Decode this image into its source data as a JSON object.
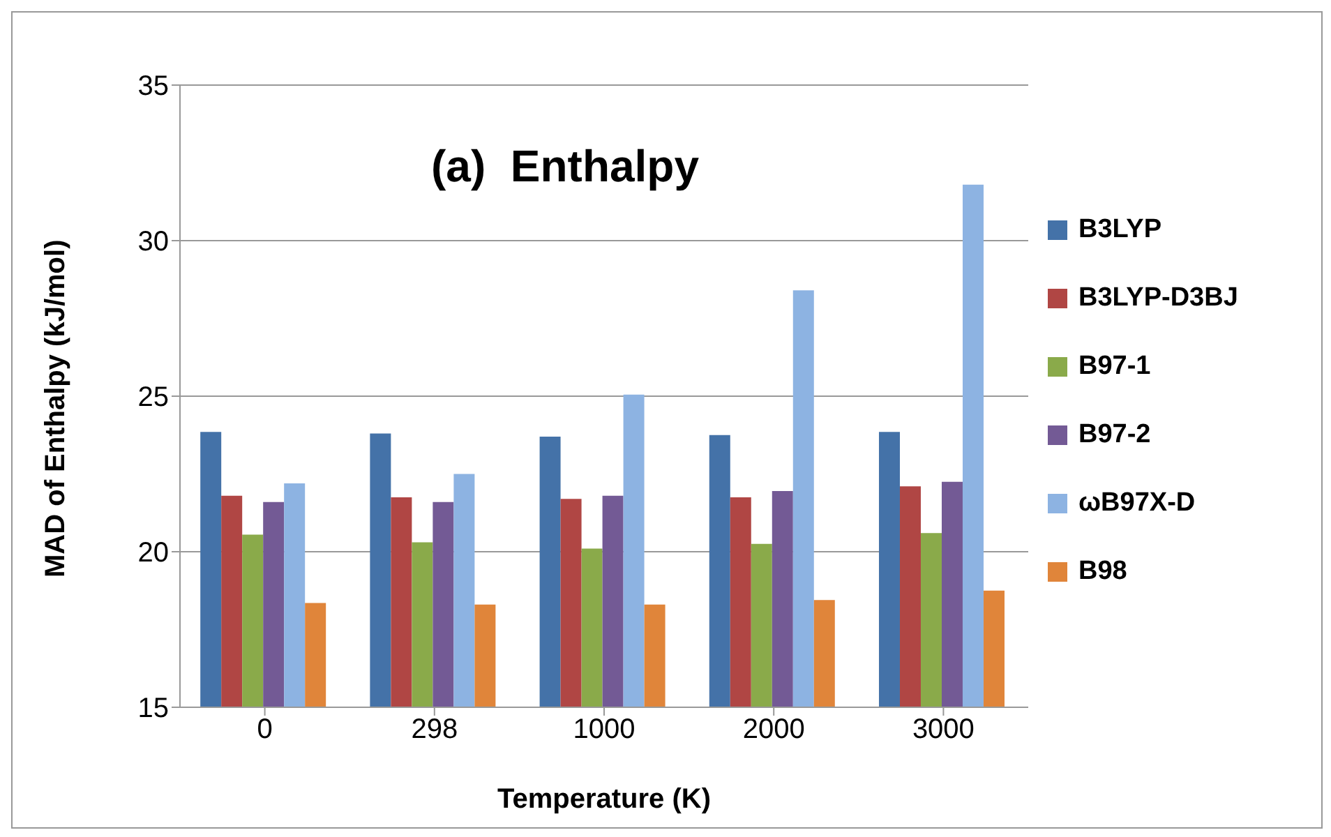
{
  "chart_data": {
    "type": "bar",
    "title": "(a)  Enthalpy",
    "xlabel": "Temperature (K)",
    "ylabel": "MAD of Enthalpy (kJ/mol)",
    "categories": [
      "0",
      "298",
      "1000",
      "2000",
      "3000"
    ],
    "series": [
      {
        "name": "B3LYP",
        "color": "#4472a8",
        "values": [
          23.85,
          23.8,
          23.7,
          23.75,
          23.85
        ]
      },
      {
        "name": "B3LYP-D3BJ",
        "color": "#b04644",
        "values": [
          21.8,
          21.75,
          21.7,
          21.75,
          22.1
        ]
      },
      {
        "name": "B97-1",
        "color": "#8aaa4a",
        "values": [
          20.55,
          20.3,
          20.1,
          20.25,
          20.6
        ]
      },
      {
        "name": "B97-2",
        "color": "#735a95",
        "values": [
          21.6,
          21.6,
          21.8,
          21.95,
          22.25
        ]
      },
      {
        "name": "ωB97X-D",
        "color": "#8db3e2",
        "values": [
          22.2,
          22.5,
          25.05,
          28.4,
          31.8
        ]
      },
      {
        "name": "B98",
        "color": "#e0853a",
        "values": [
          18.35,
          18.3,
          18.3,
          18.45,
          18.75
        ]
      }
    ],
    "ylim": [
      15,
      35
    ],
    "yticks": [
      15,
      20,
      25,
      30,
      35
    ],
    "grid": "y",
    "legend": "right"
  }
}
